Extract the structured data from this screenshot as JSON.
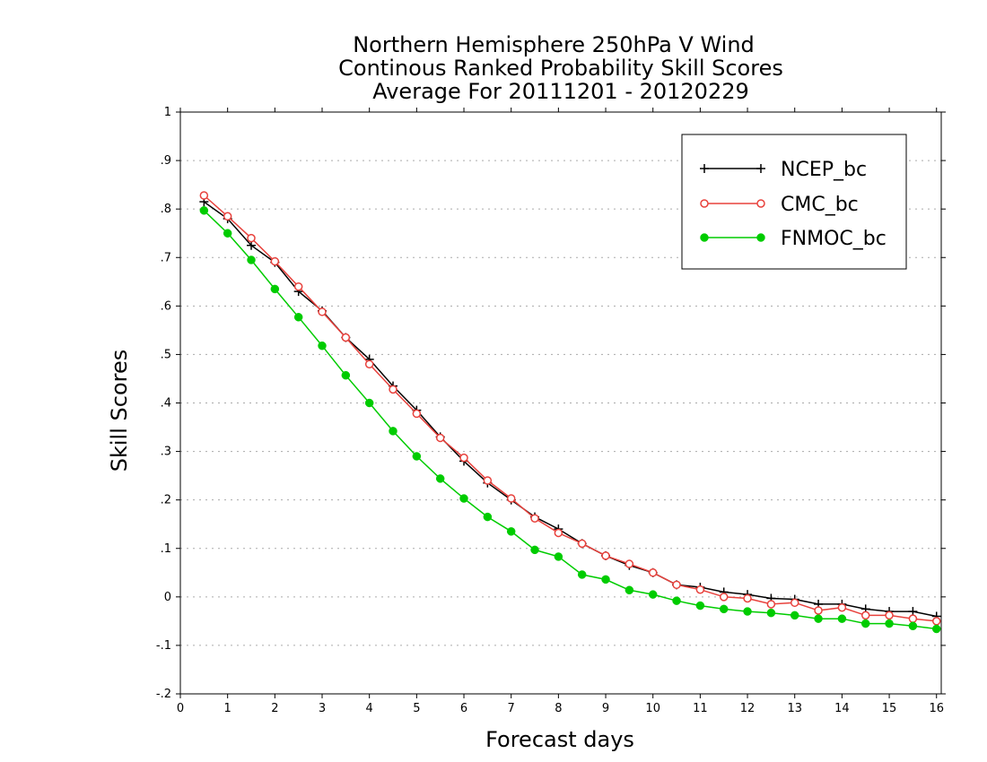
{
  "chart_data": {
    "type": "line",
    "title_lines": [
      "Northern Hemisphere 250hPa V Wind",
      "Continous Ranked Probability Skill Scores",
      "Average For 20111201 - 20120229"
    ],
    "xlabel": "Forecast days",
    "ylabel": "Skill Scores",
    "xlim": [
      0,
      16.1
    ],
    "ylim": [
      -0.2,
      1
    ],
    "x_ticks": [
      0,
      1,
      2,
      3,
      4,
      5,
      6,
      7,
      8,
      9,
      10,
      11,
      12,
      13,
      14,
      15,
      16
    ],
    "y_ticks": [
      -0.2,
      -0.1,
      0,
      0.1,
      0.2,
      0.3,
      0.4,
      0.5,
      0.6,
      0.7,
      0.8,
      0.9,
      1
    ],
    "grid": "horizontal dotted",
    "legend_position": "top-right",
    "x": [
      0.5,
      1,
      1.5,
      2,
      2.5,
      3,
      3.5,
      4,
      4.5,
      5,
      5.5,
      6,
      6.5,
      7,
      7.5,
      8,
      8.5,
      9,
      9.5,
      10,
      10.5,
      11,
      11.5,
      12,
      12.5,
      13,
      13.5,
      14,
      14.5,
      15,
      15.5,
      16
    ],
    "series": [
      {
        "name": "NCEP_bc",
        "color": "#000000",
        "marker": "plus",
        "values": [
          0.815,
          0.78,
          0.725,
          0.69,
          0.63,
          0.59,
          0.535,
          0.49,
          0.435,
          0.385,
          0.33,
          0.28,
          0.235,
          0.2,
          0.165,
          0.14,
          0.11,
          0.085,
          0.065,
          0.05,
          0.025,
          0.02,
          0.01,
          0.005,
          -0.003,
          -0.005,
          -0.015,
          -0.015,
          -0.025,
          -0.03,
          -0.03,
          -0.04
        ]
      },
      {
        "name": "CMC_bc",
        "color": "#e8413c",
        "marker": "open-circle",
        "values": [
          0.828,
          0.785,
          0.74,
          0.692,
          0.64,
          0.588,
          0.535,
          0.48,
          0.428,
          0.378,
          0.328,
          0.287,
          0.24,
          0.203,
          0.162,
          0.132,
          0.11,
          0.085,
          0.068,
          0.05,
          0.025,
          0.015,
          0.0,
          -0.003,
          -0.015,
          -0.012,
          -0.028,
          -0.022,
          -0.038,
          -0.038,
          -0.045,
          -0.05
        ]
      },
      {
        "name": "FNMOC_bc",
        "color": "#00cc00",
        "marker": "filled-circle",
        "values": [
          0.797,
          0.75,
          0.695,
          0.635,
          0.577,
          0.518,
          0.457,
          0.4,
          0.342,
          0.29,
          0.244,
          0.203,
          0.165,
          0.135,
          0.097,
          0.083,
          0.046,
          0.036,
          0.014,
          0.005,
          -0.008,
          -0.018,
          -0.025,
          -0.03,
          -0.033,
          -0.038,
          -0.045,
          -0.045,
          -0.055,
          -0.055,
          -0.06,
          -0.066
        ]
      }
    ]
  }
}
